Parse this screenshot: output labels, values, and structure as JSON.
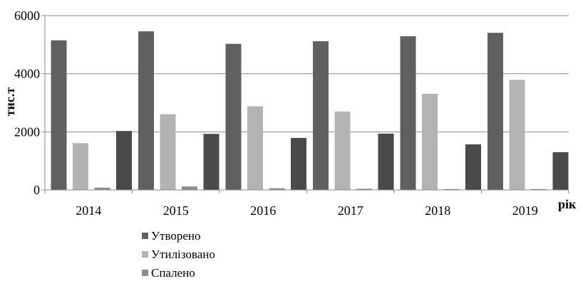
{
  "chart_data": {
    "type": "bar",
    "categories": [
      "2014",
      "2015",
      "2016",
      "2017",
      "2018",
      "2019"
    ],
    "series": [
      {
        "name": "Утворено",
        "values": [
          5150,
          5460,
          5030,
          5120,
          5290,
          5410
        ],
        "color": "#606060"
      },
      {
        "name": "Утилізовано",
        "values": [
          1610,
          2610,
          2880,
          2700,
          3310,
          3790
        ],
        "color": "#b3b3b3"
      },
      {
        "name": "Спалено",
        "values": [
          80,
          120,
          60,
          40,
          30,
          30
        ],
        "color": "#8c8c8c"
      },
      {
        "name": "",
        "values": [
          2030,
          1930,
          1790,
          1940,
          1570,
          1300
        ],
        "color": "#4a4a4a"
      }
    ],
    "ylabel": "тис.т",
    "xlabel": "рік",
    "ylim": [
      0,
      6000
    ],
    "yticks": [
      0,
      2000,
      4000,
      6000
    ],
    "grid": true,
    "legend_position": "bottom-left"
  }
}
